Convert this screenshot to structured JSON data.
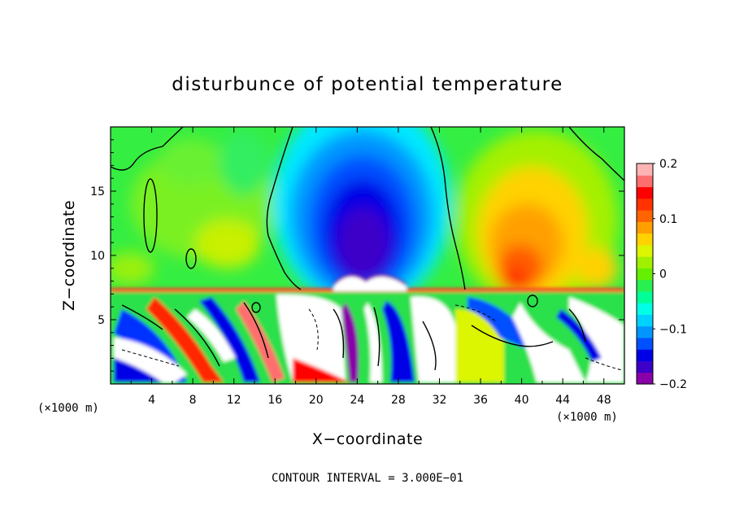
{
  "chart_data": {
    "type": "heatmap",
    "title": "disturbunce of potential temperature",
    "xlabel": "X−coordinate",
    "ylabel": "Z−coordinate",
    "x_unit_label": "(×1000 m)",
    "y_unit_label": "(×1000 m)",
    "xlim": [
      0,
      50
    ],
    "ylim": [
      0,
      20
    ],
    "x_ticks": [
      4,
      8,
      12,
      16,
      20,
      24,
      28,
      32,
      36,
      40,
      44,
      48
    ],
    "x_tick_labels": [
      "4",
      "8",
      "12",
      "16",
      "20",
      "24",
      "28",
      "32",
      "36",
      "40",
      "44",
      "48"
    ],
    "y_ticks": [
      5,
      10,
      15
    ],
    "y_tick_labels": [
      "5",
      "10",
      "15"
    ],
    "colorbar": {
      "range": [
        -0.2,
        0.2
      ],
      "ticks": [
        0.2,
        0.1,
        0,
        -0.1,
        -0.2
      ],
      "tick_labels": [
        "0.2",
        "0.1",
        "0",
        "−0.1",
        "−0.2"
      ],
      "colors": [
        "#8a00a8",
        "#3c00c8",
        "#0000e6",
        "#0050ff",
        "#0096ff",
        "#00d2ff",
        "#00ffe6",
        "#00ff96",
        "#28f050",
        "#64f000",
        "#a0f000",
        "#dcf500",
        "#ffd200",
        "#ffa000",
        "#ff6400",
        "#ff3200",
        "#ff0000",
        "#ff6e6e",
        "#ffb4b4"
      ]
    },
    "contour_note": "CONTOUR INTERVAL = 3.000E−01",
    "features": [
      {
        "name": "negative anomaly",
        "x_center": 26,
        "z_center": 11.5,
        "value": -0.2
      },
      {
        "name": "positive anomaly",
        "x_center": 41,
        "z_center": 11,
        "value": 0.14
      },
      {
        "name": "turbulent boundary layer",
        "z_top": 7.4
      }
    ]
  }
}
